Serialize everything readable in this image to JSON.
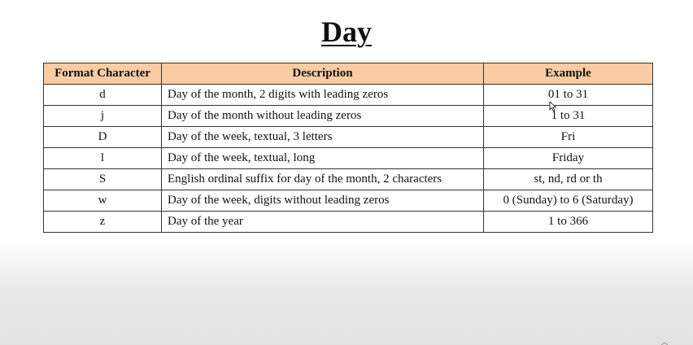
{
  "title": "Day",
  "table": {
    "headers": [
      "Format Character",
      "Description",
      "Example"
    ],
    "rows": [
      [
        "d",
        "Day of the month, 2 digits with leading zeros",
        "01 to 31"
      ],
      [
        "j",
        "Day of the month without leading zeros",
        "1 to 31"
      ],
      [
        "D",
        "Day of the week, textual, 3 letters",
        "Fri"
      ],
      [
        "l",
        "Day of the week, textual, long",
        "Friday"
      ],
      [
        "S",
        "English ordinal suffix for day of the month, 2 characters",
        "st, nd, rd or th"
      ],
      [
        "w",
        "Day of the week, digits without leading zeros",
        "0 (Sunday) to 6 (Saturday)"
      ],
      [
        "z",
        "Day of the year",
        "1 to 366"
      ]
    ]
  },
  "colors": {
    "header_background": "#fbcca3",
    "border": "#333333"
  },
  "icons": {
    "pointer": "mouse-pointer-icon"
  }
}
